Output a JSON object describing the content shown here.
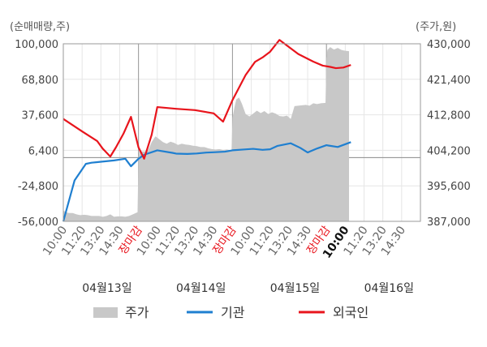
{
  "chart_data": {
    "type": "line",
    "left_axis": {
      "unit_label": "(순매매량,주)",
      "ticks": [
        "100,000",
        "68,800",
        "37,600",
        "6,400",
        "-24,800",
        "-56,000"
      ],
      "range": [
        -56000,
        100000
      ]
    },
    "right_axis": {
      "unit_label": "(주가,원)",
      "ticks": [
        "430,000",
        "421,400",
        "412,800",
        "404,200",
        "395,600",
        "387,000"
      ],
      "range": [
        387000,
        430000
      ]
    },
    "x_ticks": [
      {
        "label": "10:00",
        "close": false,
        "bold": false
      },
      {
        "label": "11:20",
        "close": false,
        "bold": false
      },
      {
        "label": "13:20",
        "close": false,
        "bold": false
      },
      {
        "label": "14:30",
        "close": false,
        "bold": false
      },
      {
        "label": "장마감",
        "close": true,
        "bold": false
      },
      {
        "label": "10:00",
        "close": false,
        "bold": false
      },
      {
        "label": "11:20",
        "close": false,
        "bold": false
      },
      {
        "label": "13:20",
        "close": false,
        "bold": false
      },
      {
        "label": "14:30",
        "close": false,
        "bold": false
      },
      {
        "label": "장마감",
        "close": true,
        "bold": false
      },
      {
        "label": "10:00",
        "close": false,
        "bold": false
      },
      {
        "label": "11:20",
        "close": false,
        "bold": false
      },
      {
        "label": "13:20",
        "close": false,
        "bold": false
      },
      {
        "label": "14:30",
        "close": false,
        "bold": false
      },
      {
        "label": "장마감",
        "close": true,
        "bold": false
      },
      {
        "label": "10:00",
        "close": false,
        "bold": true
      },
      {
        "label": "11:20",
        "close": false,
        "bold": false
      },
      {
        "label": "13:20",
        "close": false,
        "bold": false
      },
      {
        "label": "14:30",
        "close": false,
        "bold": false
      }
    ],
    "dates": [
      "04월13일",
      "04월14일",
      "04월15일",
      "04월16일"
    ],
    "legend": [
      {
        "name": "주가",
        "color": "#c8c8c8",
        "kind": "area"
      },
      {
        "name": "기관",
        "color": "#1f7fd0",
        "kind": "line"
      },
      {
        "name": "외국인",
        "color": "#e8141c",
        "kind": "line"
      }
    ],
    "series": [
      {
        "name": "주가",
        "axis": "right",
        "x": [
          0,
          0.15,
          0.3,
          0.5,
          0.7,
          0.9,
          1.1,
          1.3,
          1.5,
          1.7,
          1.9,
          2.1,
          2.3,
          2.5,
          2.7,
          2.9,
          3.1,
          3.3,
          3.5,
          3.7,
          3.95,
          4.0,
          4.05,
          4.3,
          4.5,
          4.7,
          4.9,
          5.1,
          5.3,
          5.5,
          5.7,
          5.9,
          6.1,
          6.3,
          6.5,
          6.7,
          6.9,
          7.1,
          7.3,
          7.5,
          7.7,
          7.9,
          8.1,
          8.3,
          8.5,
          8.7,
          8.95,
          9.0,
          9.1,
          9.2,
          9.35,
          9.5,
          9.7,
          9.9,
          10.1,
          10.3,
          10.5,
          10.7,
          10.9,
          11.1,
          11.3,
          11.5,
          11.7,
          11.9,
          12.1,
          12.3,
          12.5,
          12.7,
          12.9,
          13.1,
          13.3,
          13.5,
          13.7,
          13.95,
          14.0,
          14.05,
          14.2,
          14.4,
          14.6,
          14.8,
          15.0,
          15.2
        ],
        "values": [
          389600,
          389200,
          389000,
          389000,
          388700,
          388500,
          388600,
          388500,
          388300,
          388300,
          388300,
          388100,
          388300,
          388700,
          388100,
          388200,
          388200,
          388100,
          388300,
          388700,
          389200,
          402500,
          404000,
          403900,
          404100,
          406200,
          407600,
          406900,
          406200,
          405800,
          406300,
          406000,
          405500,
          405800,
          405600,
          405500,
          405300,
          405200,
          405000,
          405000,
          404700,
          404500,
          404400,
          404500,
          404300,
          404400,
          404200,
          412000,
          414500,
          416500,
          417000,
          415500,
          413000,
          412400,
          413100,
          413800,
          413200,
          413700,
          413000,
          413400,
          413100,
          412500,
          412400,
          412600,
          411800,
          414900,
          415000,
          415100,
          415200,
          415000,
          415600,
          415400,
          415600,
          415700,
          426500,
          428500,
          429200,
          428600,
          429000,
          428500,
          428300,
          428200
        ]
      },
      {
        "name": "기관",
        "axis": "left",
        "x": [
          0,
          0.6,
          1.2,
          1.5,
          1.8,
          2.7,
          3.3,
          3.6,
          4.0,
          4.3,
          5.0,
          5.8,
          6.0,
          6.6,
          7.1,
          7.6,
          8.0,
          8.6,
          9.0,
          9.5,
          10.1,
          10.6,
          11.0,
          11.4,
          12.1,
          12.6,
          13.0,
          13.5,
          14.0,
          14.1,
          14.6,
          15.3
        ],
        "values": [
          -56000,
          -20000,
          -5500,
          -4500,
          -4000,
          -2500,
          -1000,
          -7600,
          -1000,
          2500,
          6400,
          4200,
          3500,
          3200,
          3600,
          4400,
          4700,
          5200,
          6400,
          7000,
          7700,
          6800,
          7300,
          10300,
          12600,
          8600,
          4500,
          8000,
          10900,
          10600,
          9300,
          13600
        ]
      },
      {
        "name": "외국인",
        "axis": "left",
        "x": [
          0,
          1.0,
          1.8,
          2.1,
          2.5,
          2.8,
          3.2,
          3.6,
          4.0,
          4.3,
          4.7,
          5.0,
          6.0,
          7.0,
          8.0,
          8.5,
          9.0,
          9.7,
          10.2,
          10.6,
          11.0,
          11.5,
          12.5,
          13.3,
          13.8,
          14.2,
          14.5,
          14.9,
          15.3
        ],
        "values": [
          34000,
          23000,
          14600,
          7800,
          900,
          9000,
          21000,
          35800,
          9000,
          -1000,
          20000,
          44400,
          42900,
          41700,
          38900,
          31600,
          50500,
          72600,
          84100,
          88000,
          93000,
          103400,
          91000,
          84300,
          80800,
          79700,
          78600,
          79100,
          81400
        ]
      }
    ]
  }
}
